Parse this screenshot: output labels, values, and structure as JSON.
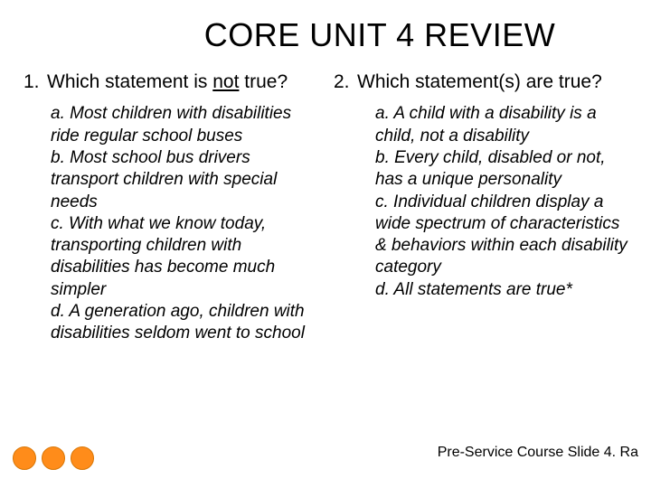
{
  "title": "CORE UNIT 4 REVIEW",
  "q1": {
    "num": "1.",
    "text_before": "Which statement is ",
    "underlined": "not",
    "text_after": " true?",
    "a": "a.  Most children with disabilities ride regular school buses",
    "b": "b.  Most school bus drivers transport children with special needs",
    "c": "c.  With what we know today, transporting children with disabilities has become much simpler",
    "d": "d.  A generation ago, children with disabilities seldom went to school"
  },
  "q2": {
    "num": "2.",
    "text": "Which statement(s) are true?",
    "a": "a.  A child with a disability is a child, not a disability",
    "b": "b.  Every child, disabled or not, has a unique personality",
    "c": "c.  Individual children display a wide spectrum of characteristics & behaviors within each disability category",
    "d": "d.  All statements are true*"
  },
  "footer": "Pre-Service Course Slide 4. Ra",
  "colors": {
    "dot_fill": "#ff8c1a",
    "dot_border": "#d97706",
    "background": "#ffffff",
    "text": "#000000"
  }
}
